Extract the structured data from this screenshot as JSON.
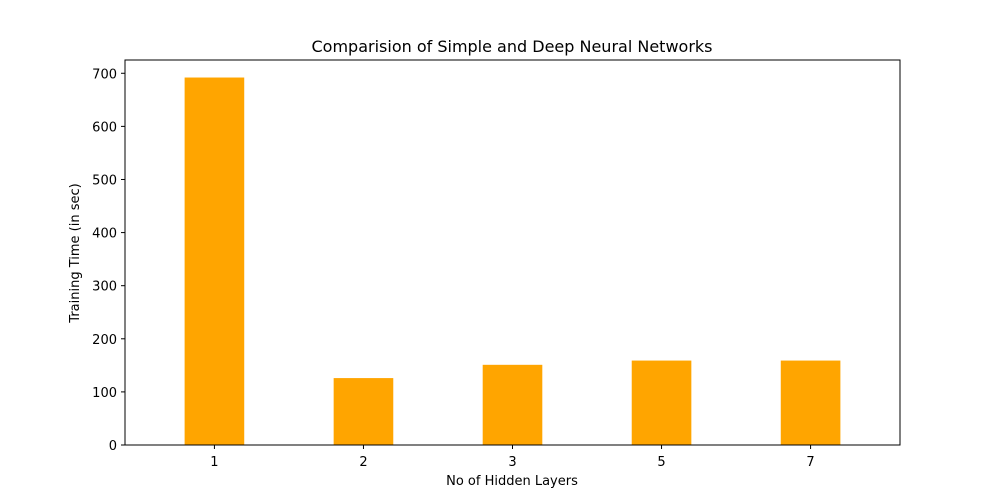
{
  "chart_data": {
    "type": "bar",
    "title": "Comparision of Simple and Deep Neural Networks",
    "xlabel": "No of Hidden Layers",
    "ylabel": "Training Time (in sec)",
    "categories": [
      "1",
      "2",
      "3",
      "5",
      "7"
    ],
    "values": [
      692,
      126,
      151,
      159,
      159
    ],
    "ylim": [
      0,
      725
    ],
    "yticks": [
      0,
      100,
      200,
      300,
      400,
      500,
      600,
      700
    ],
    "bar_color": "#ffa500",
    "grid": false,
    "legend": "none"
  }
}
